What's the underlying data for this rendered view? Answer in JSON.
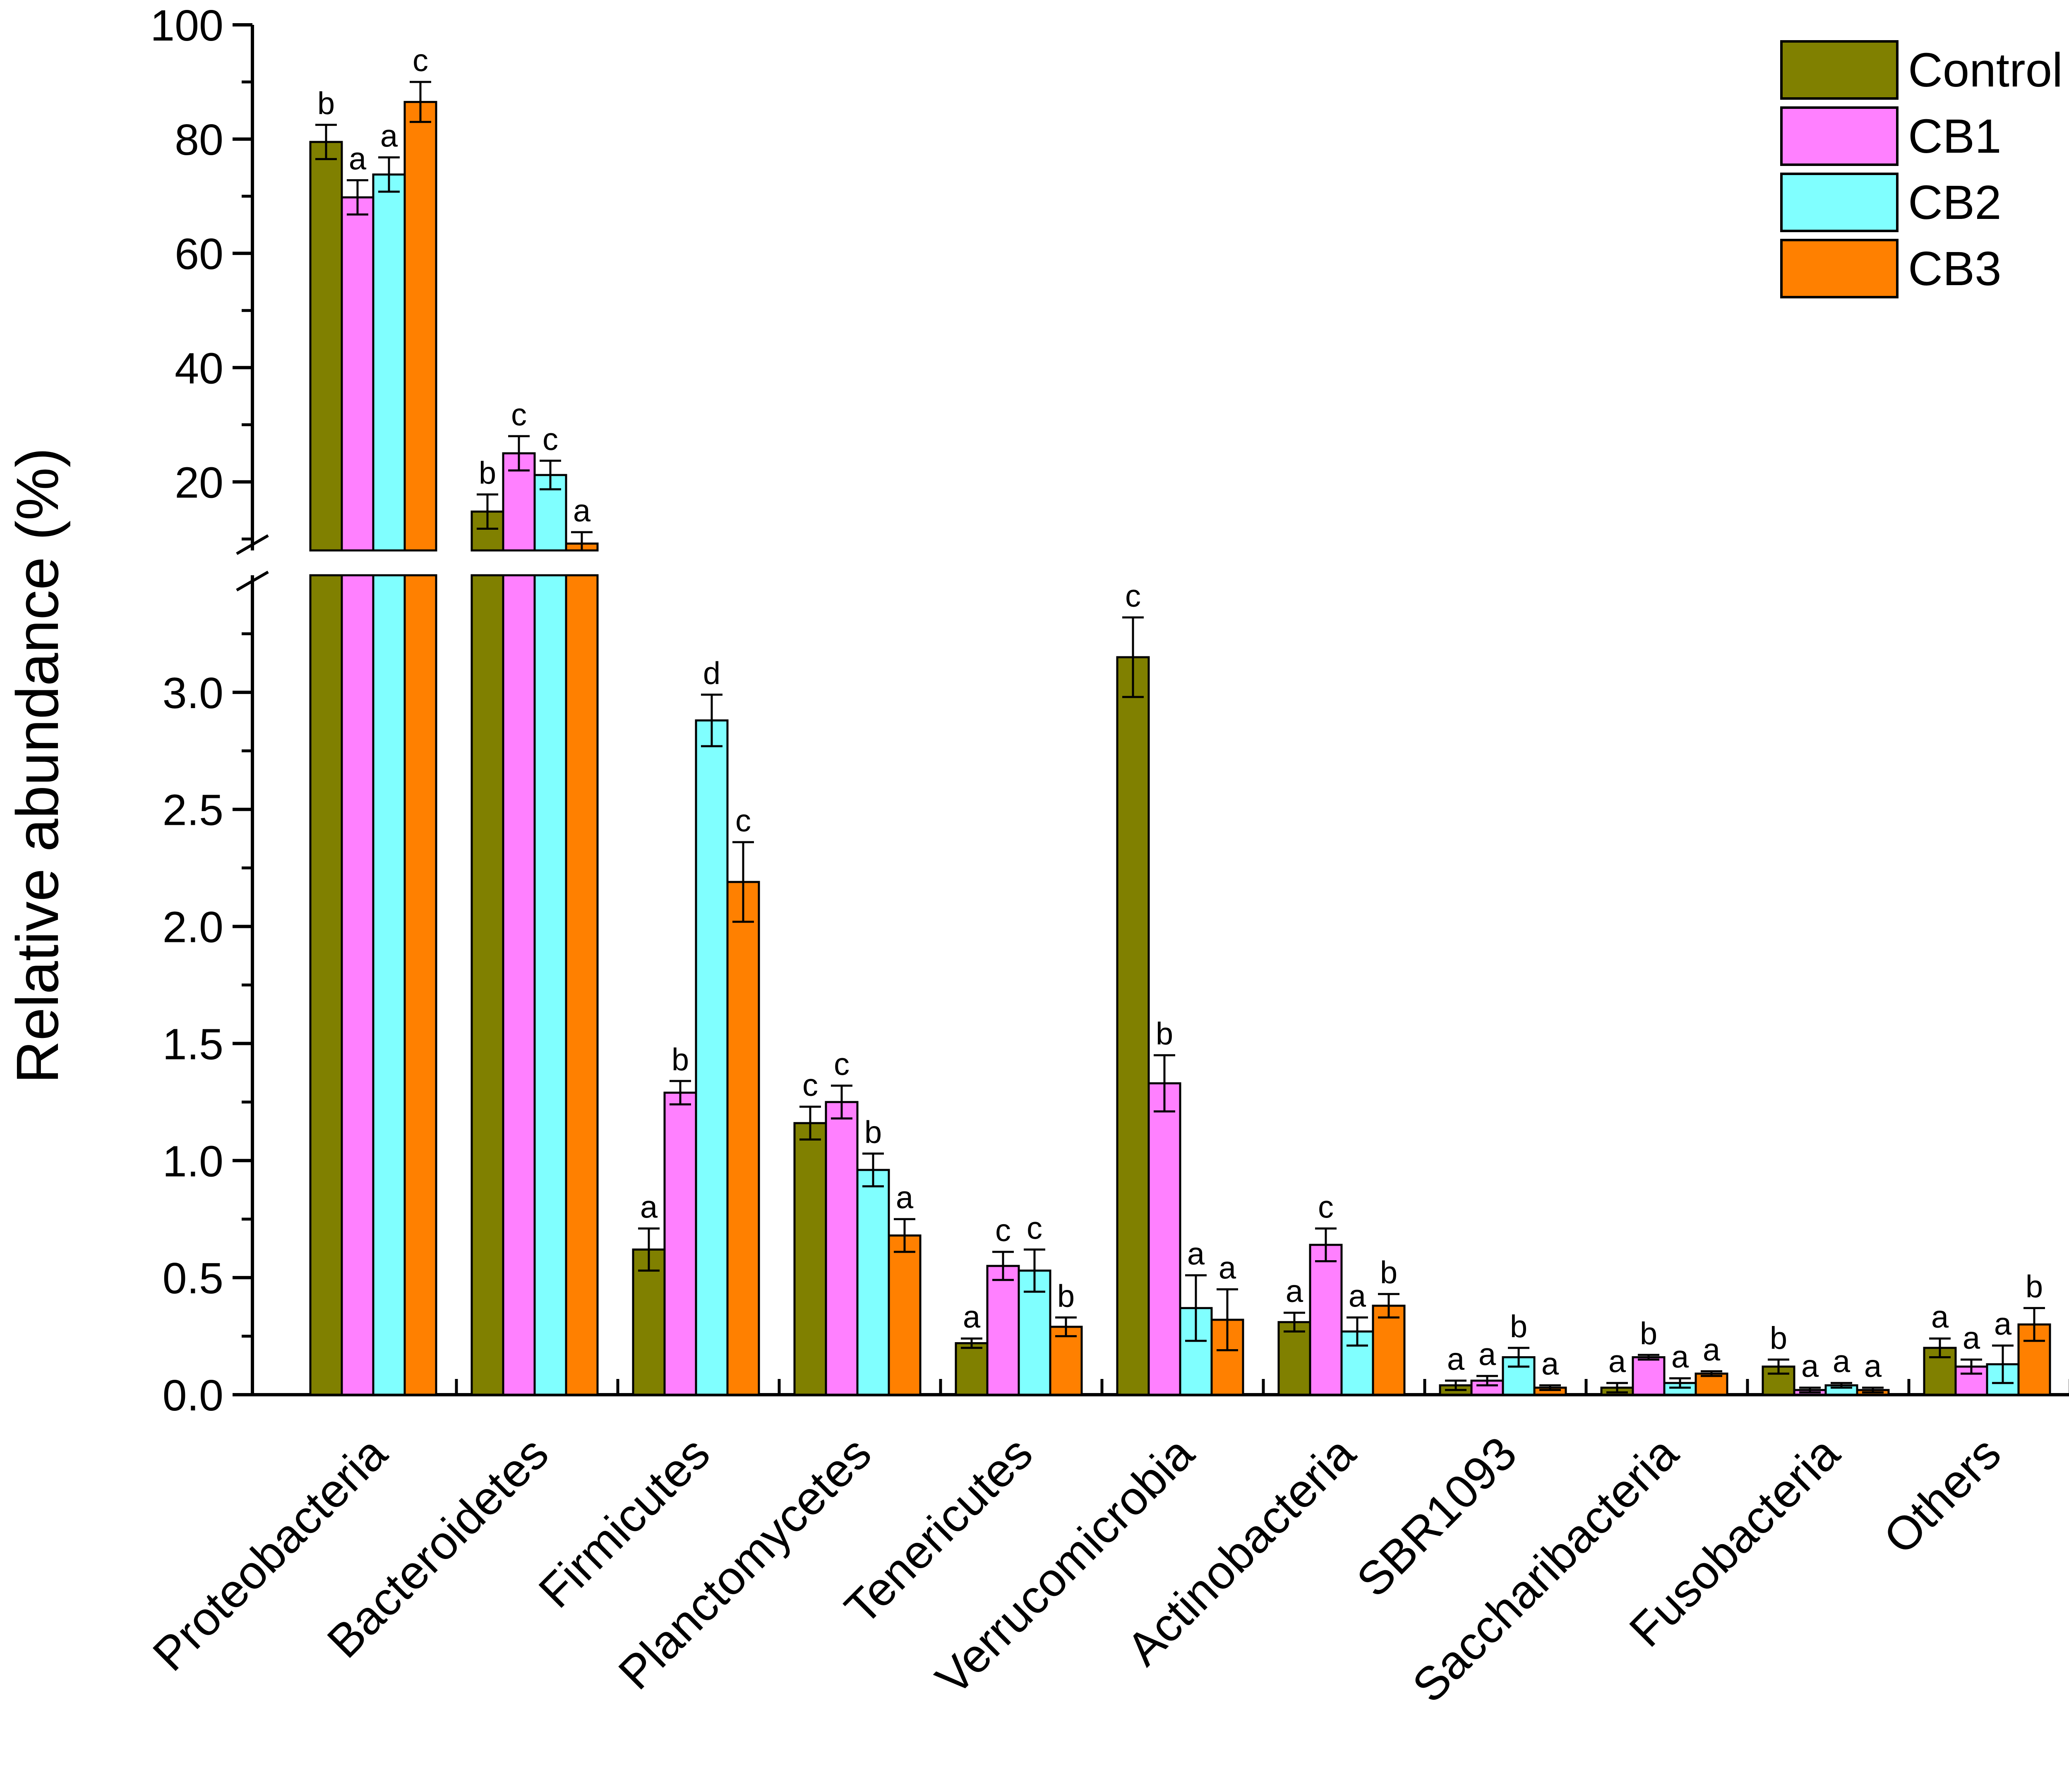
{
  "chart_data": {
    "type": "bar",
    "title": "",
    "xlabel": "",
    "ylabel": "Relative abundance (%)",
    "categories": [
      "Proteobacteria",
      "Bacteroidetes",
      "Firmicutes",
      "Planctomycetes",
      "Tenericutes",
      "Verrucomicrobia",
      "Actinobacteria",
      "SBR1093",
      "Saccharibacteria",
      "Fusobacteria",
      "Others"
    ],
    "series": [
      {
        "name": "Control",
        "color": "#808000",
        "values": [
          79.5,
          14.8,
          0.62,
          1.16,
          0.22,
          3.15,
          0.31,
          0.04,
          0.03,
          0.12,
          0.2
        ],
        "errors": [
          3.0,
          3.0,
          0.09,
          0.07,
          0.02,
          0.17,
          0.04,
          0.02,
          0.02,
          0.03,
          0.04
        ],
        "letters": [
          "b",
          "b",
          "a",
          "c",
          "a",
          "c",
          "a",
          "a",
          "a",
          "b",
          "a"
        ]
      },
      {
        "name": "CB1",
        "color": "#FF80FF",
        "values": [
          69.8,
          25.0,
          1.29,
          1.25,
          0.55,
          1.33,
          0.64,
          0.06,
          0.16,
          0.02,
          0.12
        ],
        "errors": [
          3.0,
          3.0,
          0.05,
          0.07,
          0.06,
          0.12,
          0.07,
          0.02,
          0.01,
          0.01,
          0.03
        ],
        "letters": [
          "a",
          "c",
          "b",
          "c",
          "c",
          "b",
          "c",
          "a",
          "b",
          "a",
          "a"
        ]
      },
      {
        "name": "CB2",
        "color": "#80FFFF",
        "values": [
          73.8,
          21.2,
          2.88,
          0.96,
          0.53,
          0.37,
          0.27,
          0.16,
          0.05,
          0.04,
          0.13
        ],
        "errors": [
          3.0,
          2.5,
          0.11,
          0.07,
          0.09,
          0.14,
          0.06,
          0.04,
          0.02,
          0.01,
          0.08
        ],
        "letters": [
          "a",
          "c",
          "d",
          "b",
          "c",
          "a",
          "a",
          "b",
          "a",
          "a",
          "a"
        ]
      },
      {
        "name": "CB3",
        "color": "#FF8000",
        "values": [
          86.5,
          9.2,
          2.19,
          0.68,
          0.29,
          0.32,
          0.38,
          0.03,
          0.09,
          0.02,
          0.3
        ],
        "errors": [
          3.5,
          2.0,
          0.17,
          0.07,
          0.04,
          0.13,
          0.05,
          0.01,
          0.01,
          0.01,
          0.07
        ],
        "letters": [
          "c",
          "a",
          "c",
          "a",
          "b",
          "a",
          "b",
          "a",
          "a",
          "a",
          "b"
        ]
      }
    ],
    "y_axis": {
      "lower_segment": {
        "range": [
          0,
          3.5
        ],
        "ticks": [
          "0.0",
          "0.5",
          "1.0",
          "1.5",
          "2.0",
          "2.5",
          "3.0"
        ]
      },
      "upper_segment": {
        "range": [
          8,
          100
        ],
        "ticks": [
          "20",
          "40",
          "60",
          "80",
          "100"
        ]
      },
      "break": "between 3.5 and 8"
    },
    "legend": {
      "position": "top-right",
      "entries": [
        "Control",
        "CB1",
        "CB2",
        "CB3"
      ]
    },
    "grid": false
  }
}
